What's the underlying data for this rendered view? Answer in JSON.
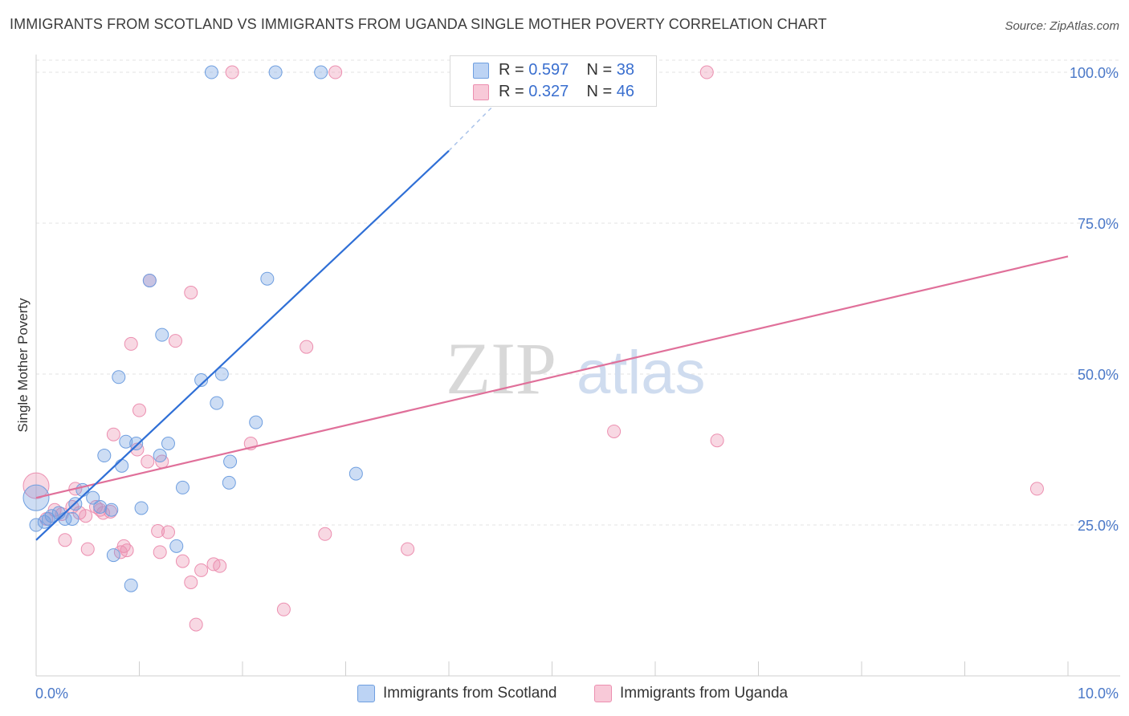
{
  "title": "IMMIGRANTS FROM SCOTLAND VS IMMIGRANTS FROM UGANDA SINGLE MOTHER POVERTY CORRELATION CHART",
  "source": "Source: ZipAtlas.com",
  "watermark": {
    "zip": "ZIP",
    "atlas": "atlas"
  },
  "legend": {
    "scotland": {
      "r_label": "R = ",
      "r_value": "0.597",
      "n_label": "N = ",
      "n_value": "38"
    },
    "uganda": {
      "r_label": "R = ",
      "r_value": "0.327",
      "n_label": "N = ",
      "n_value": "46"
    }
  },
  "chart_data": {
    "type": "scatter",
    "title": "IMMIGRANTS FROM SCOTLAND VS IMMIGRANTS FROM UGANDA SINGLE MOTHER POVERTY CORRELATION CHART",
    "xlabel": "",
    "ylabel": "Single Mother Poverty",
    "xlim": [
      0,
      10
    ],
    "ylim": [
      0,
      102
    ],
    "x_tick_labels": [
      "0.0%",
      "10.0%"
    ],
    "y_ticks": [
      25,
      50,
      75,
      100
    ],
    "y_tick_labels": [
      "25.0%",
      "50.0%",
      "75.0%",
      "100.0%"
    ],
    "grid": true,
    "colors": {
      "scotland": "#6f9fe0",
      "scotland_line": "#2f6fd6",
      "uganda": "#ec8fb0",
      "uganda_line": "#e0709a"
    },
    "series": [
      {
        "name": "Immigrants from Scotland",
        "points": [
          [
            0.0,
            29.5
          ],
          [
            0.08,
            25.5
          ],
          [
            0.12,
            26.0
          ],
          [
            0.15,
            26.5
          ],
          [
            0.22,
            27.0
          ],
          [
            0.28,
            26.0
          ],
          [
            0.35,
            26.0
          ],
          [
            0.38,
            28.5
          ],
          [
            0.45,
            30.8
          ],
          [
            0.55,
            29.5
          ],
          [
            0.62,
            28.0
          ],
          [
            0.66,
            36.5
          ],
          [
            0.73,
            27.5
          ],
          [
            0.75,
            20.0
          ],
          [
            0.8,
            49.5
          ],
          [
            0.83,
            34.8
          ],
          [
            0.87,
            38.8
          ],
          [
            0.92,
            15.0
          ],
          [
            0.97,
            38.5
          ],
          [
            1.02,
            27.8
          ],
          [
            1.1,
            65.5
          ],
          [
            1.2,
            36.5
          ],
          [
            1.22,
            56.5
          ],
          [
            1.28,
            38.5
          ],
          [
            1.36,
            21.5
          ],
          [
            1.42,
            31.2
          ],
          [
            1.7,
            100
          ],
          [
            1.6,
            49.0
          ],
          [
            1.75,
            45.2
          ],
          [
            1.8,
            50.0
          ],
          [
            1.87,
            32.0
          ],
          [
            1.88,
            35.5
          ],
          [
            2.13,
            42.0
          ],
          [
            2.24,
            65.8
          ],
          [
            2.32,
            100
          ],
          [
            2.76,
            100
          ],
          [
            3.1,
            33.5
          ],
          [
            0.0,
            25.0
          ]
        ],
        "trend": [
          [
            0.0,
            22.5
          ],
          [
            4.0,
            87.0
          ]
        ],
        "trend_dashed": [
          [
            4.0,
            87.0
          ],
          [
            4.55,
            96.5
          ]
        ]
      },
      {
        "name": "Immigrants from Uganda",
        "points": [
          [
            0.0,
            31.5
          ],
          [
            0.1,
            26.0
          ],
          [
            0.18,
            27.5
          ],
          [
            0.25,
            26.8
          ],
          [
            0.28,
            22.5
          ],
          [
            0.38,
            31.0
          ],
          [
            0.42,
            27.0
          ],
          [
            0.48,
            26.5
          ],
          [
            0.5,
            21.0
          ],
          [
            0.58,
            28.0
          ],
          [
            0.65,
            27.0
          ],
          [
            0.72,
            27.2
          ],
          [
            0.75,
            40.0
          ],
          [
            0.82,
            20.5
          ],
          [
            0.85,
            21.5
          ],
          [
            0.88,
            20.8
          ],
          [
            0.92,
            55.0
          ],
          [
            0.98,
            37.5
          ],
          [
            1.0,
            44.0
          ],
          [
            1.08,
            35.5
          ],
          [
            1.1,
            65.5
          ],
          [
            1.18,
            24.0
          ],
          [
            1.2,
            20.5
          ],
          [
            1.22,
            35.5
          ],
          [
            1.28,
            23.8
          ],
          [
            1.35,
            55.5
          ],
          [
            1.42,
            19.0
          ],
          [
            1.5,
            15.5
          ],
          [
            1.5,
            63.5
          ],
          [
            1.55,
            8.5
          ],
          [
            1.6,
            17.5
          ],
          [
            1.72,
            18.5
          ],
          [
            1.78,
            18.2
          ],
          [
            1.9,
            100
          ],
          [
            2.08,
            38.5
          ],
          [
            2.4,
            11.0
          ],
          [
            2.62,
            54.5
          ],
          [
            2.8,
            23.5
          ],
          [
            2.9,
            100
          ],
          [
            3.6,
            21.0
          ],
          [
            5.6,
            40.5
          ],
          [
            6.5,
            100
          ],
          [
            6.6,
            39.0
          ],
          [
            9.7,
            31.0
          ],
          [
            0.35,
            28.0
          ],
          [
            0.62,
            27.5
          ]
        ],
        "trend": [
          [
            0.0,
            29.5
          ],
          [
            10.0,
            69.5
          ]
        ]
      }
    ]
  },
  "bottom_legend": {
    "scotland": "Immigrants from Scotland",
    "uganda": "Immigrants from Uganda"
  }
}
